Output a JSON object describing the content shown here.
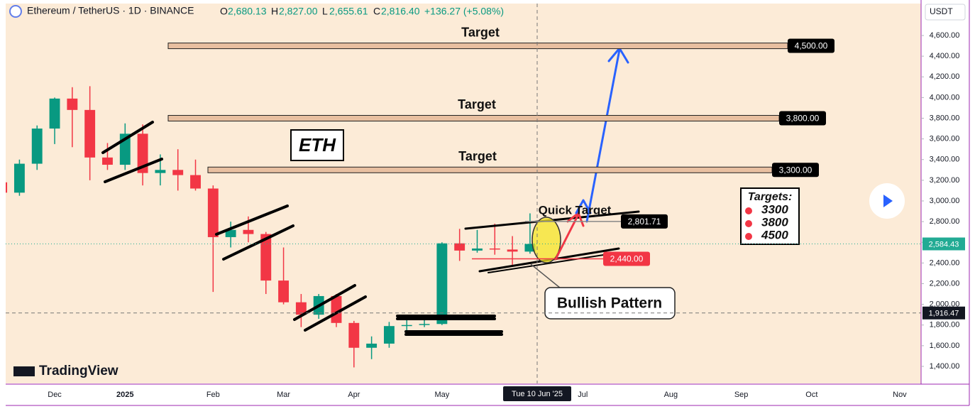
{
  "header": {
    "symbol": "Ethereum / TetherUS · 1D · BINANCE",
    "open_key": "O",
    "open": "2,680.13",
    "high_key": "H",
    "high": "2,827.00",
    "low_key": "L",
    "low": "2,655.61",
    "close_key": "C",
    "close": "2,816.40",
    "change": "+136.27 (+5.08%)",
    "currency": "USDT",
    "brand": "TradingView"
  },
  "chart_data": {
    "type": "candlestick",
    "categories": [
      null,
      null,
      null,
      "Dec",
      null,
      null,
      null,
      "2025",
      null,
      null,
      null,
      null,
      "Feb",
      null,
      null,
      null,
      "Mar",
      null,
      null,
      null,
      "Apr",
      null,
      null,
      null,
      null,
      "May",
      null,
      null,
      null,
      null,
      null,
      null,
      null,
      "Jul",
      null,
      null,
      null,
      null,
      "Aug",
      null,
      null,
      null,
      "Sep",
      null,
      null,
      null,
      "Oct",
      null,
      null,
      null,
      null,
      "Nov",
      null
    ],
    "open": [
      3180,
      3080,
      3360,
      3700,
      3990,
      3880,
      3420,
      3350,
      3650,
      3270,
      3300,
      3250,
      3120,
      2650,
      2720,
      2680,
      2230,
      2020,
      1900,
      2080,
      1820,
      1580,
      1620,
      1790,
      1800,
      1810,
      2590,
      2520,
      2540,
      2530,
      2510,
      null,
      null,
      null,
      null,
      null,
      null,
      null,
      null,
      null,
      null,
      null,
      null,
      null,
      null,
      null,
      null,
      null,
      null,
      null,
      null,
      null,
      null
    ],
    "high": [
      3450,
      3400,
      3730,
      4000,
      4100,
      4110,
      3560,
      3750,
      3740,
      3450,
      3500,
      3400,
      3150,
      2800,
      2850,
      2700,
      2550,
      2100,
      2100,
      2100,
      1840,
      1690,
      1830,
      1860,
      1850,
      2600,
      2730,
      2720,
      2780,
      2660,
      2880,
      null,
      null,
      null,
      null,
      null,
      null,
      null,
      null,
      null,
      null,
      null,
      null,
      null,
      null,
      null,
      null,
      null,
      null,
      null,
      null,
      null,
      null
    ],
    "low": [
      2950,
      3050,
      3300,
      3550,
      3520,
      3200,
      3300,
      3300,
      3150,
      3150,
      3100,
      3100,
      2120,
      2550,
      2600,
      2100,
      2000,
      1780,
      1860,
      1780,
      1390,
      1470,
      1580,
      1750,
      1780,
      1800,
      2420,
      2500,
      2480,
      2380,
      2490,
      null,
      null,
      null,
      null,
      null,
      null,
      null,
      null,
      null,
      null,
      null,
      null,
      null,
      null,
      null,
      null,
      null,
      null,
      null,
      null,
      null,
      null
    ],
    "close": [
      3080,
      3360,
      3700,
      3990,
      3880,
      3420,
      3350,
      3650,
      3270,
      3300,
      3250,
      3120,
      2650,
      2720,
      2680,
      2230,
      2020,
      1900,
      2080,
      1820,
      1580,
      1620,
      1790,
      1800,
      1810,
      2590,
      2520,
      2540,
      2530,
      2510,
      2584,
      null,
      null,
      null,
      null,
      null,
      null,
      null,
      null,
      null,
      null,
      null,
      null,
      null,
      null,
      null,
      null,
      null,
      null,
      null,
      null,
      null,
      null
    ],
    "up_color": "#089981",
    "down_color": "#f23645",
    "ylim": [
      1235,
      4909
    ],
    "yticks": [
      {
        "value": 1400,
        "label": "1,400.00"
      },
      {
        "value": 1600,
        "label": "1,600.00"
      },
      {
        "value": 1800,
        "label": "1,800.00"
      },
      {
        "value": 2000,
        "label": "2,000.00"
      },
      {
        "value": 2200,
        "label": "2,200.00"
      },
      {
        "value": 2400,
        "label": "2,400.00"
      },
      {
        "value": 2600,
        "label": "2,600.00"
      },
      {
        "value": 2800,
        "label": "2,800.00"
      },
      {
        "value": 3000,
        "label": "3,000.00"
      },
      {
        "value": 3200,
        "label": "3,200.00"
      },
      {
        "value": 3400,
        "label": "3,400.00"
      },
      {
        "value": 3600,
        "label": "3,600.00"
      },
      {
        "value": 3800,
        "label": "3,800.00"
      },
      {
        "value": 4000,
        "label": "4,000.00"
      },
      {
        "value": 4200,
        "label": "4,200.00"
      },
      {
        "value": 4400,
        "label": "4,400.00"
      },
      {
        "value": 4600,
        "label": "4,600.00"
      }
    ],
    "grid": false,
    "levels": [
      {
        "title": "Target",
        "value": 4500,
        "label": "4,500.00",
        "color": "#000000"
      },
      {
        "title": "Target",
        "value": 3800,
        "label": "3,800.00",
        "color": "#000000"
      },
      {
        "title": "Target",
        "value": 3300,
        "label": "3,300.00",
        "color": "#000000"
      },
      {
        "value": 2801.71,
        "label": "2,801.71",
        "color": "#000000"
      },
      {
        "value": 2440,
        "label": "2,440.00",
        "color": "#f23645"
      }
    ],
    "last_price": {
      "value": 2584.43,
      "label": "2,584.43",
      "color": "#22ab94"
    },
    "crosshair": {
      "x_label": "Tue 10 Jun '25",
      "y": {
        "value": 1916.47,
        "label": "1,916.47"
      }
    },
    "annotations": {
      "eth": "ETH",
      "quick_target": "Quick Target",
      "bullish_pattern": "Bullish Pattern",
      "targets_title": "Targets:",
      "targets": [
        3300,
        3800,
        4500
      ]
    }
  }
}
